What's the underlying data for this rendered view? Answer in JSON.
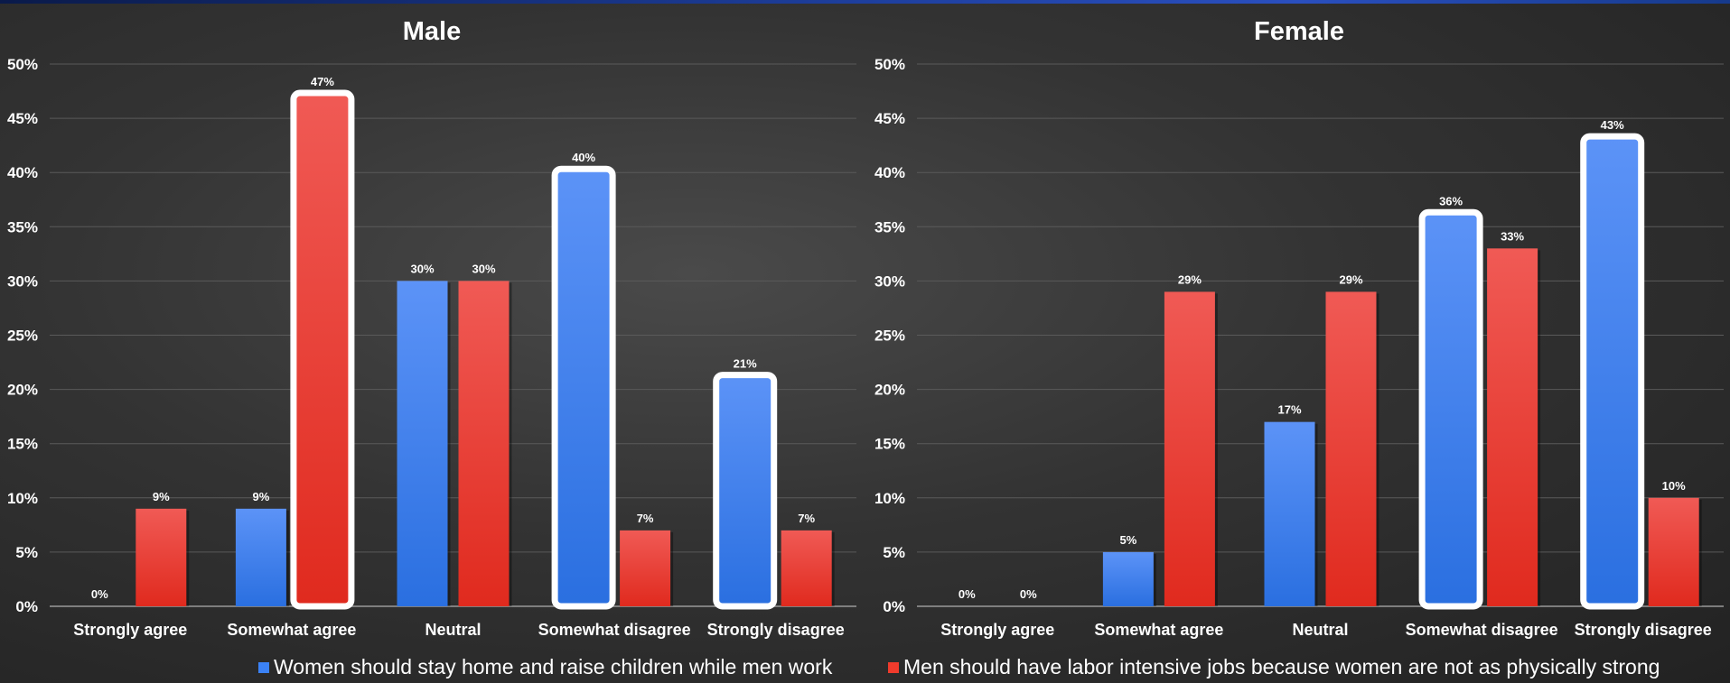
{
  "colors": {
    "series1": "#3b82f6",
    "series2": "#ef3b2c",
    "highlight": "#ffffff"
  },
  "legend": [
    {
      "label": "Women should stay home and raise children while men work",
      "color": "#3b82f6"
    },
    {
      "label": "Men should have labor intensive jobs because women are not as physically strong",
      "color": "#ef3b2c"
    }
  ],
  "chart_data": [
    {
      "type": "bar",
      "title": "Male",
      "categories": [
        "Strongly agree",
        "Somewhat agree",
        "Neutral",
        "Somewhat disagree",
        "Strongly disagree"
      ],
      "series": [
        {
          "name": "Women should stay home and raise children while men work",
          "values": [
            0,
            9,
            30,
            40,
            21
          ],
          "labels": [
            "0%",
            "9%",
            "30%",
            "40%",
            "21%"
          ]
        },
        {
          "name": "Men should have labor intensive jobs because women are not as physically strong",
          "values": [
            9,
            47,
            30,
            7,
            7
          ],
          "labels": [
            "9%",
            "47%",
            "30%",
            "7%",
            "7%"
          ]
        }
      ],
      "highlighted": [
        [
          1,
          1
        ],
        [
          0,
          3
        ],
        [
          0,
          4
        ]
      ],
      "ylim": [
        0,
        50
      ],
      "yticks": [
        "0%",
        "5%",
        "10%",
        "15%",
        "20%",
        "25%",
        "30%",
        "35%",
        "40%",
        "45%",
        "50%"
      ],
      "grid": true
    },
    {
      "type": "bar",
      "title": "Female",
      "categories": [
        "Strongly agree",
        "Somewhat agree",
        "Neutral",
        "Somewhat disagree",
        "Strongly disagree"
      ],
      "series": [
        {
          "name": "Women should stay home and raise children while men work",
          "values": [
            0,
            5,
            17,
            36,
            43
          ],
          "labels": [
            "0%",
            "5%",
            "17%",
            "36%",
            "43%"
          ]
        },
        {
          "name": "Men should have labor intensive jobs because women are not as physically strong",
          "values": [
            0,
            29,
            29,
            33,
            10
          ],
          "labels": [
            "0%",
            "29%",
            "29%",
            "33%",
            "10%"
          ]
        }
      ],
      "highlighted": [
        [
          0,
          3
        ],
        [
          0,
          4
        ]
      ],
      "ylim": [
        0,
        50
      ],
      "yticks": [
        "0%",
        "5%",
        "10%",
        "15%",
        "20%",
        "25%",
        "30%",
        "35%",
        "40%",
        "45%",
        "50%"
      ],
      "grid": true
    }
  ]
}
